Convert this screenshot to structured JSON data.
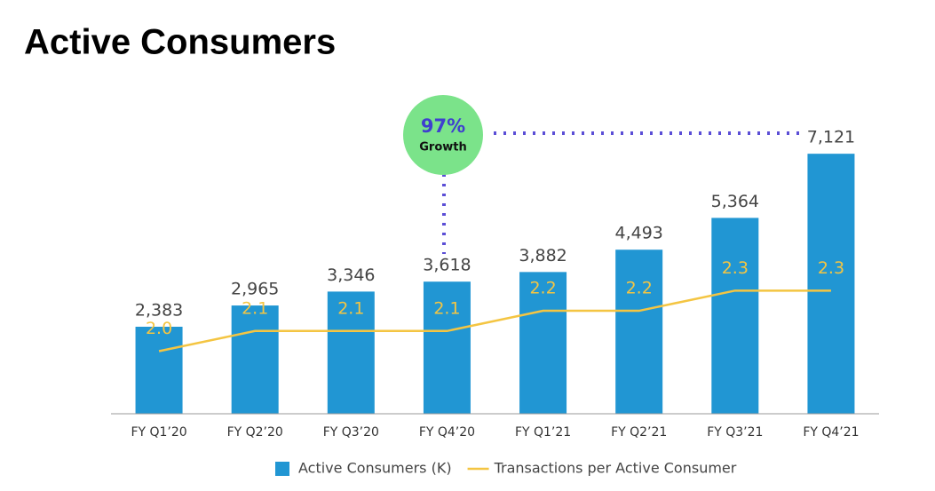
{
  "chart_data": {
    "type": "bar",
    "title": "Active Consumers",
    "categories": [
      "FY Q1’20",
      "FY Q2’20",
      "FY Q3’20",
      "FY Q4’20",
      "FY Q1’21",
      "FY Q2’21",
      "FY Q3’21",
      "FY Q4’21"
    ],
    "series": [
      {
        "name": "Active Consumers (K)",
        "type": "bar",
        "color": "#2196d3",
        "values": [
          2383,
          2965,
          3346,
          3618,
          3882,
          4493,
          5364,
          7121
        ],
        "value_labels": [
          "2,383",
          "2,965",
          "3,346",
          "3,618",
          "3,882",
          "4,493",
          "5,364",
          "7,121"
        ]
      },
      {
        "name": "Transactions per Active Consumer",
        "type": "line",
        "axis": "y2",
        "color": "#f4c542",
        "values": [
          2.0,
          2.1,
          2.1,
          2.1,
          2.2,
          2.2,
          2.3,
          2.3
        ],
        "value_labels": [
          "2.0",
          "2.1",
          "2.1",
          "2.1",
          "2.2",
          "2.2",
          "2.3",
          "2.3"
        ]
      }
    ],
    "ylim": [
      0,
      8900
    ],
    "y2lim": [
      1.69,
      3.3
    ],
    "annotations": [
      "97%",
      "Growth"
    ],
    "legend": "bottom"
  }
}
